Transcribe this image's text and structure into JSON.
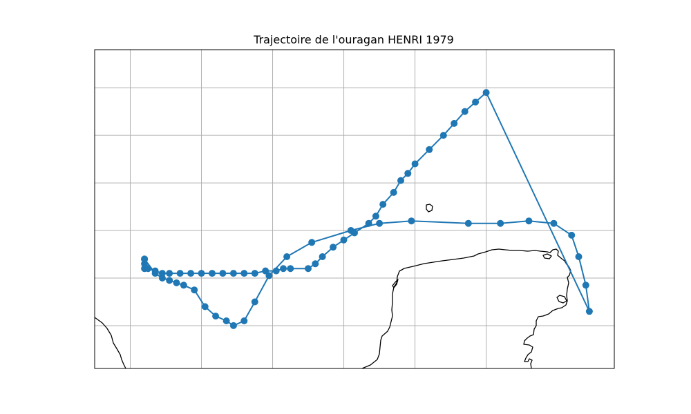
{
  "title": "Trajectoire de l'ouragan HENRI 1979",
  "colors": {
    "track": "#1f77b4",
    "coast": "#000000",
    "grid": "#b0b0b0",
    "frame": "#000000",
    "background": "#ffffff"
  },
  "chart_data": {
    "type": "map-trajectory",
    "title": "Trajectoire de l'ouragan HENRI 1979",
    "grid": true,
    "graticule_lon": [
      -96,
      -94,
      -92,
      -90,
      -88,
      -86
    ],
    "graticule_lat": [
      18,
      20,
      22,
      24,
      26,
      28
    ],
    "extent": {
      "lon": [
        -97,
        -82.4
      ],
      "lat": [
        16.2,
        29.6
      ]
    },
    "track": {
      "marker": "circle",
      "points": [
        [
          -95.6,
          20.4
        ],
        [
          -95.6,
          20.8
        ],
        [
          -95.3,
          20.2
        ],
        [
          -95.1,
          20.0
        ],
        [
          -94.9,
          19.9
        ],
        [
          -94.7,
          19.8
        ],
        [
          -94.5,
          19.7
        ],
        [
          -94.2,
          19.5
        ],
        [
          -93.9,
          18.8
        ],
        [
          -93.6,
          18.4
        ],
        [
          -93.3,
          18.2
        ],
        [
          -93.1,
          18.0
        ],
        [
          -92.8,
          18.2
        ],
        [
          -92.5,
          19.0
        ],
        [
          -92.1,
          20.1
        ],
        [
          -91.6,
          20.9
        ],
        [
          -90.9,
          21.5
        ],
        [
          -89.8,
          22.0
        ],
        [
          -89.0,
          22.3
        ],
        [
          -88.1,
          22.4
        ],
        [
          -86.5,
          22.3
        ],
        [
          -85.6,
          22.3
        ],
        [
          -84.8,
          22.4
        ],
        [
          -84.1,
          22.3
        ],
        [
          -83.6,
          21.8
        ],
        [
          -83.4,
          20.9
        ],
        [
          -83.2,
          19.7
        ],
        [
          -83.1,
          18.6
        ],
        [
          -86.0,
          27.8
        ],
        [
          -86.3,
          27.4
        ],
        [
          -86.6,
          27.0
        ],
        [
          -86.9,
          26.5
        ],
        [
          -87.2,
          26.0
        ],
        [
          -87.6,
          25.4
        ],
        [
          -88.0,
          24.8
        ],
        [
          -88.2,
          24.4
        ],
        [
          -88.4,
          24.1
        ],
        [
          -88.6,
          23.6
        ],
        [
          -88.9,
          23.1
        ],
        [
          -89.1,
          22.6
        ],
        [
          -89.3,
          22.3
        ],
        [
          -89.7,
          21.9
        ],
        [
          -90.0,
          21.6
        ],
        [
          -90.3,
          21.3
        ],
        [
          -90.6,
          20.9
        ],
        [
          -90.8,
          20.6
        ],
        [
          -91.0,
          20.4
        ],
        [
          -91.5,
          20.4
        ],
        [
          -91.7,
          20.4
        ],
        [
          -91.9,
          20.3
        ],
        [
          -92.2,
          20.3
        ],
        [
          -92.5,
          20.2
        ],
        [
          -92.8,
          20.2
        ],
        [
          -93.1,
          20.2
        ],
        [
          -93.4,
          20.2
        ],
        [
          -93.7,
          20.2
        ],
        [
          -94.0,
          20.2
        ],
        [
          -94.3,
          20.2
        ],
        [
          -94.6,
          20.2
        ],
        [
          -94.9,
          20.2
        ],
        [
          -95.1,
          20.2
        ],
        [
          -95.3,
          20.3
        ],
        [
          -95.5,
          20.4
        ],
        [
          -95.6,
          20.6
        ],
        [
          -95.6,
          20.8
        ]
      ]
    }
  }
}
